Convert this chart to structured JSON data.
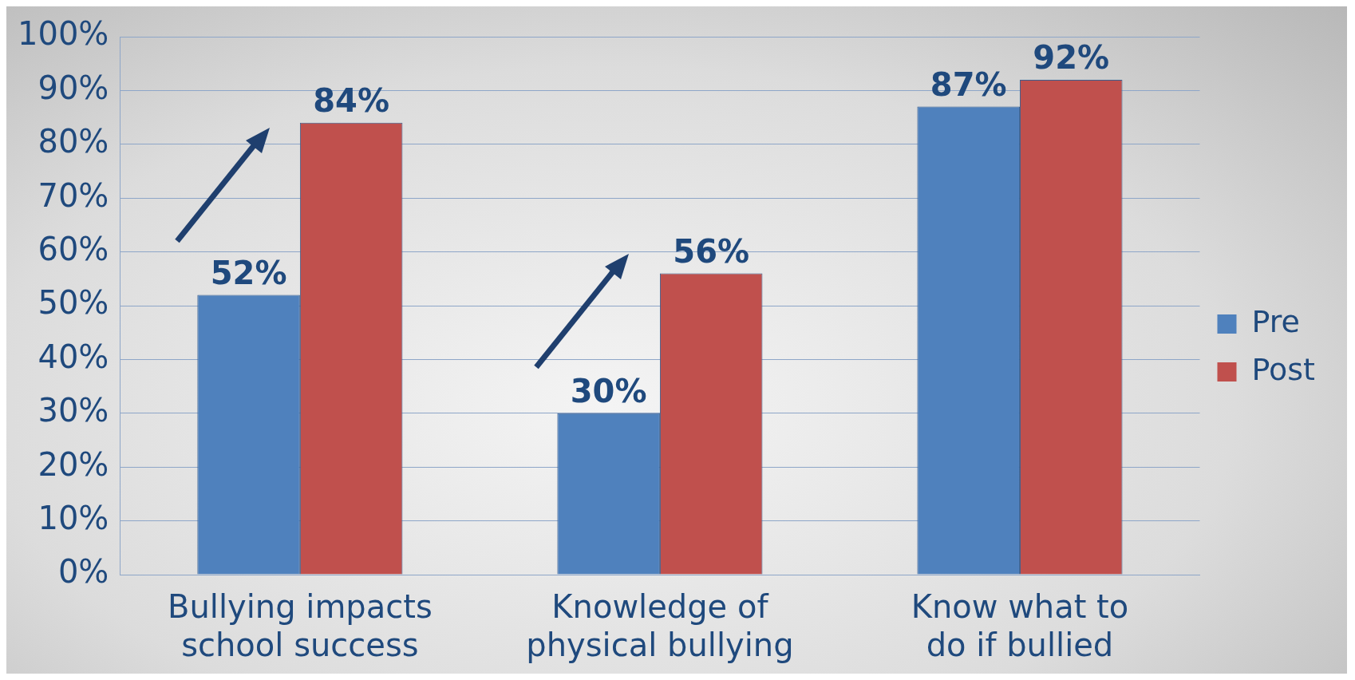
{
  "chart_data": {
    "type": "bar",
    "categories": [
      "Bullying impacts school success",
      "Knowledge of physical bullying",
      "Know what to do if bullied"
    ],
    "series": [
      {
        "name": "Pre",
        "color": "#4f81bd",
        "values": [
          52,
          30,
          87
        ],
        "value_labels": [
          "52%",
          "30%",
          "87%"
        ]
      },
      {
        "name": "Post",
        "color": "#c0504d",
        "values": [
          84,
          56,
          92
        ],
        "value_labels": [
          "84%",
          "56%",
          "92%"
        ]
      }
    ],
    "ylim": [
      0,
      100
    ],
    "yticks": [
      {
        "value": 0,
        "label": "0%"
      },
      {
        "value": 10,
        "label": "10%"
      },
      {
        "value": 20,
        "label": "20%"
      },
      {
        "value": 30,
        "label": "30%"
      },
      {
        "value": 40,
        "label": "40%"
      },
      {
        "value": 50,
        "label": "50%"
      },
      {
        "value": 60,
        "label": "60%"
      },
      {
        "value": 70,
        "label": "70%"
      },
      {
        "value": 80,
        "label": "80%"
      },
      {
        "value": 90,
        "label": "90%"
      },
      {
        "value": 100,
        "label": "100%"
      }
    ],
    "grid": "y",
    "legend": "right"
  }
}
